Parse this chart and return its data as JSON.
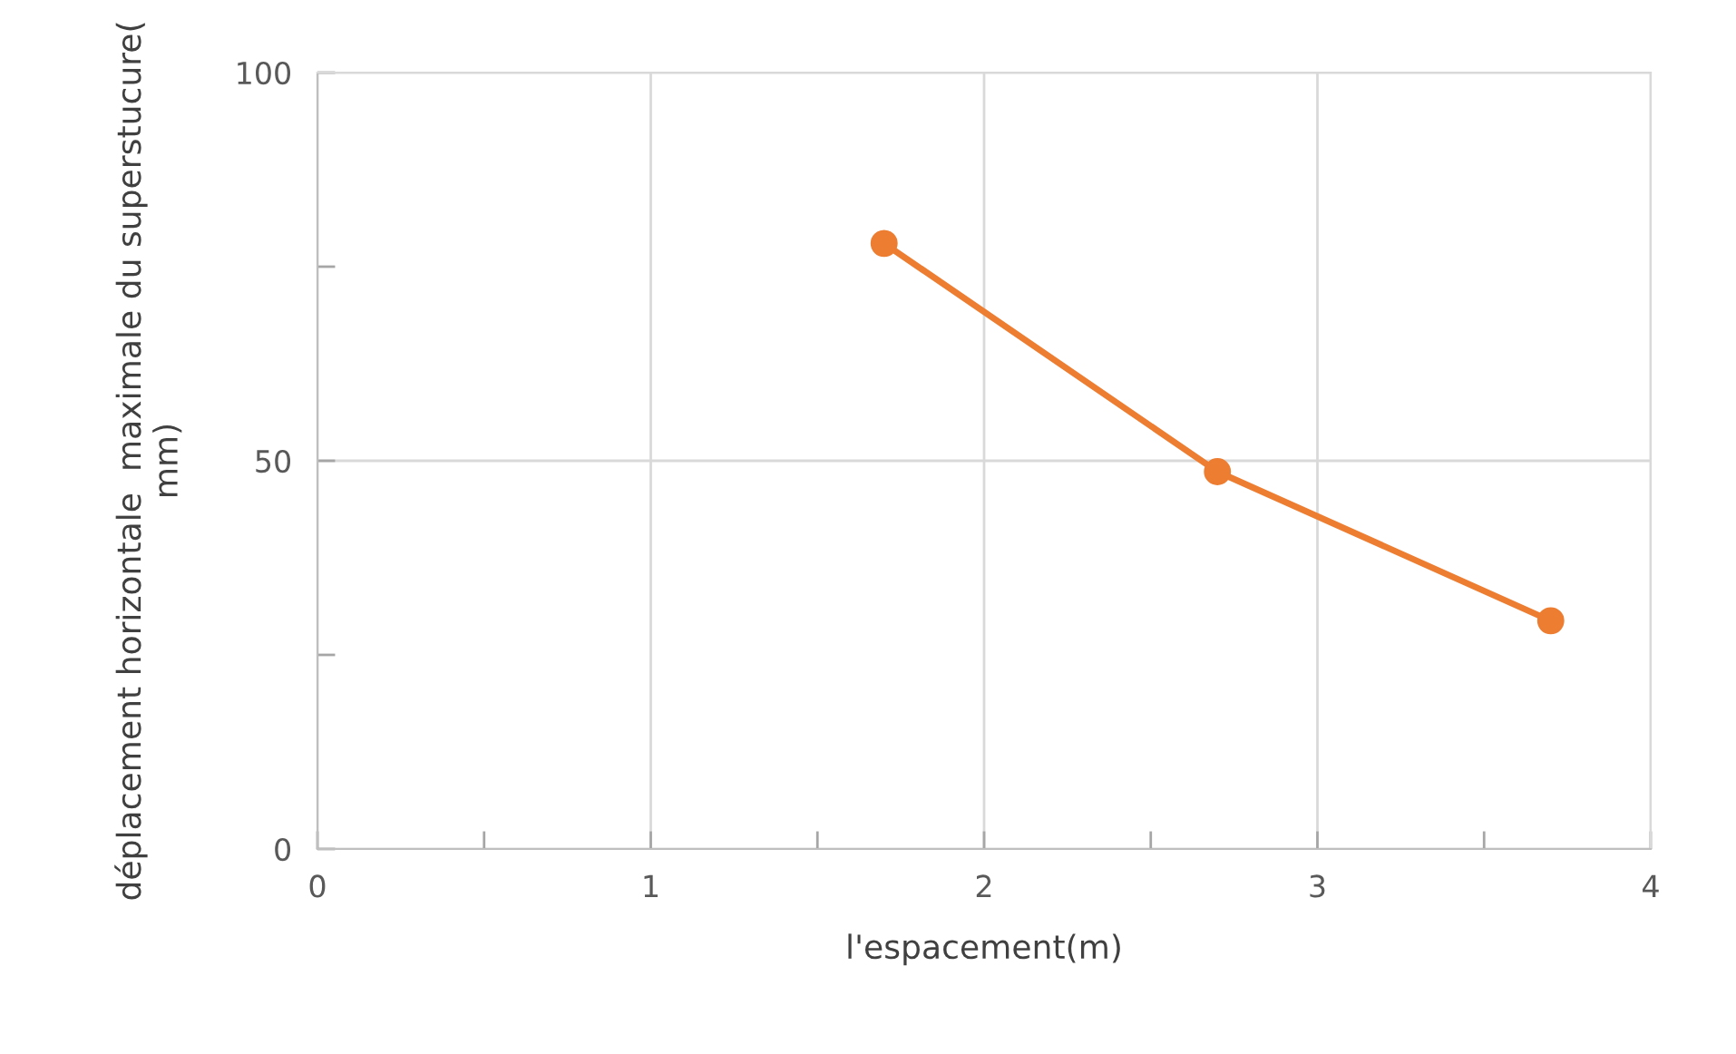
{
  "chart_data": {
    "type": "line",
    "xlabel": "l'espacement(m)",
    "ylabel": "déplacement horizontale  maximale du superstucure( mm)",
    "x": [
      1.7,
      2.7,
      3.7
    ],
    "series": [
      {
        "color": "#ed7d31",
        "values": [
          78.0,
          48.6,
          29.4
        ]
      }
    ],
    "xlim": [
      0,
      4
    ],
    "ylim": [
      0,
      100
    ],
    "xticks": [
      0,
      {
        "value": 0.5,
        "label": null
      },
      1,
      {
        "value": 1.5,
        "label": null
      },
      2,
      {
        "value": 2.5,
        "label": null
      },
      3,
      {
        "value": 3.5,
        "label": null
      },
      4
    ],
    "yticks": [
      0,
      {
        "value": 25,
        "label": null
      },
      50,
      {
        "value": 75,
        "label": null
      },
      100
    ],
    "grid": true,
    "marker": "circle",
    "line_style": "solid"
  }
}
